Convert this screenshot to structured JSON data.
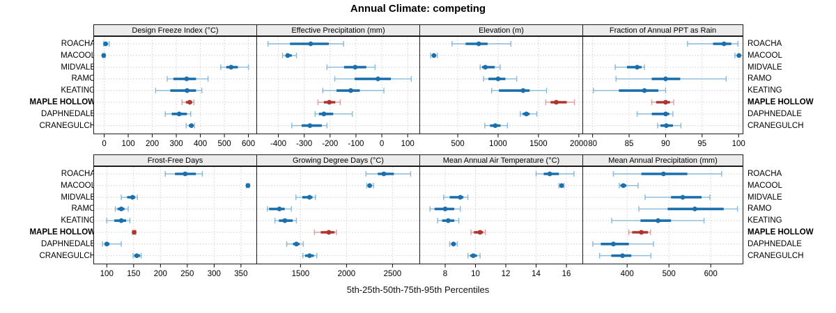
{
  "title": "Annual Climate: competing",
  "caption": "5th-25th-50th-75th-95th Percentiles",
  "stations": [
    "ROACHA",
    "MACOOL",
    "MIDVALE",
    "RAMO",
    "KEATING",
    "MAPLE HOLLOW",
    "DAPHNEDALE",
    "CRANEGULCH"
  ],
  "highlight_station": "MAPLE HOLLOW",
  "colors": {
    "series_blue": "#1b6fad",
    "series_blue_light": "#85b8d9",
    "highlight_red": "#b0332f",
    "highlight_red_light": "#de9d9b",
    "strip_bg": "#ececec",
    "grid": "#cfcfcf",
    "border": "#1a1a1a"
  },
  "chart_data": {
    "type": "dotplot-percentiles",
    "percentile_labels": [
      "5th",
      "25th",
      "50th",
      "75th",
      "95th"
    ],
    "layout": "2 rows x 4 columns, shared station y-axis, free x scales",
    "grid": true,
    "panels": [
      {
        "title": "Design Freeze Index (°C)",
        "xlim": [
          -45,
          636
        ],
        "ticks": [
          0,
          100,
          200,
          300,
          400,
          500,
          600
        ],
        "values": [
          [
            -2,
            2,
            6,
            15,
            21
          ],
          [
            -6,
            -4,
            -2,
            1,
            4
          ],
          [
            485,
            508,
            528,
            556,
            600
          ],
          [
            262,
            288,
            343,
            382,
            432
          ],
          [
            214,
            275,
            345,
            382,
            406
          ],
          [
            324,
            340,
            356,
            366,
            373
          ],
          [
            254,
            281,
            312,
            344,
            360
          ],
          [
            341,
            352,
            363,
            370,
            376
          ]
        ]
      },
      {
        "title": "Effective Precipitation (mm)",
        "xlim": [
          -485,
          148
        ],
        "ticks": [
          -400,
          -300,
          -200,
          -100,
          0,
          100
        ],
        "values": [
          [
            -440,
            -355,
            -275,
            -205,
            -148
          ],
          [
            -384,
            -372,
            -364,
            -348,
            -330
          ],
          [
            -212,
            -146,
            -103,
            -60,
            -26
          ],
          [
            -182,
            -105,
            -15,
            35,
            114
          ],
          [
            -228,
            -175,
            -120,
            -85,
            8
          ],
          [
            -247,
            -224,
            -203,
            -180,
            -161
          ],
          [
            -258,
            -243,
            -224,
            -188,
            -114
          ],
          [
            -348,
            -310,
            -278,
            -232,
            -212
          ]
        ]
      },
      {
        "title": "Elevation (m)",
        "xlim": [
          25,
          2053
        ],
        "ticks": [
          500,
          1000,
          1500,
          2000
        ],
        "values": [
          [
            430,
            597,
            760,
            870,
            1158
          ],
          [
            165,
            188,
            205,
            228,
            248
          ],
          [
            778,
            802,
            842,
            958,
            1025
          ],
          [
            820,
            880,
            1000,
            1090,
            1230
          ],
          [
            920,
            1010,
            1310,
            1390,
            1600
          ],
          [
            1590,
            1650,
            1720,
            1850,
            1945
          ],
          [
            1275,
            1305,
            1350,
            1390,
            1480
          ],
          [
            835,
            900,
            965,
            1030,
            1115
          ]
        ]
      },
      {
        "title": "Fraction of Annual PPT as Rain",
        "xlim": [
          78.6,
          100.65
        ],
        "ticks": [
          80,
          85,
          90,
          95,
          100
        ],
        "values": [
          [
            93.0,
            96.5,
            98.0,
            99.0,
            99.9
          ],
          [
            99.5,
            99.8,
            100.05,
            100.3,
            100.6
          ],
          [
            83.1,
            84.7,
            86.1,
            86.7,
            87.1
          ],
          [
            83.2,
            88.1,
            90.0,
            92.0,
            98.3
          ],
          [
            80.1,
            83.6,
            87.1,
            89.0,
            90.0
          ],
          [
            88.1,
            88.7,
            90.0,
            90.6,
            91.1
          ],
          [
            86.1,
            88.1,
            90.0,
            90.5,
            91.0
          ],
          [
            88.9,
            89.3,
            90.1,
            91.0,
            92.1
          ]
        ]
      },
      {
        "title": "Frost-Free Days",
        "xlim": [
          75,
          380
        ],
        "ticks": [
          100,
          150,
          200,
          250,
          300,
          350
        ],
        "values": [
          [
            209,
            227,
            246,
            266,
            278
          ],
          [
            360,
            361.5,
            363,
            364,
            365.5
          ],
          [
            127,
            138,
            148,
            153,
            157
          ],
          [
            116,
            120,
            127,
            133,
            140
          ],
          [
            100,
            114,
            127,
            136,
            143
          ],
          [
            148,
            149.5,
            151,
            152.5,
            154
          ],
          [
            92,
            96,
            100,
            105,
            127
          ],
          [
            149,
            151,
            156,
            162,
            164
          ]
        ]
      },
      {
        "title": "Growing Degree Days (°C)",
        "xlim": [
          1020,
          2800
        ],
        "ticks": [
          1500,
          2000,
          2500
        ],
        "values": [
          [
            2212,
            2340,
            2406,
            2515,
            2697
          ],
          [
            2220,
            2238,
            2252,
            2272,
            2293
          ],
          [
            1450,
            1520,
            1598,
            1630,
            1662
          ],
          [
            1140,
            1158,
            1270,
            1328,
            1400
          ],
          [
            1222,
            1265,
            1330,
            1415,
            1455
          ],
          [
            1652,
            1720,
            1808,
            1870,
            1890
          ],
          [
            1350,
            1418,
            1455,
            1490,
            1530
          ],
          [
            1525,
            1550,
            1598,
            1645,
            1677
          ]
        ]
      },
      {
        "title": "Mean Annual Air Temperature (°C)",
        "xlim": [
          6.3,
          17.1
        ],
        "ticks": [
          8,
          10,
          12,
          14,
          16
        ],
        "values": [
          [
            14.0,
            14.5,
            14.9,
            15.5,
            16.5
          ],
          [
            15.5,
            15.6,
            15.68,
            15.76,
            15.84
          ],
          [
            7.9,
            8.3,
            9.0,
            9.2,
            9.5
          ],
          [
            7.0,
            7.3,
            8.0,
            8.6,
            9.0
          ],
          [
            7.5,
            7.8,
            8.2,
            8.6,
            8.9
          ],
          [
            9.7,
            9.9,
            10.3,
            10.5,
            10.65
          ],
          [
            8.3,
            8.4,
            8.55,
            8.7,
            8.8
          ],
          [
            9.5,
            9.65,
            9.85,
            10.1,
            10.3
          ]
        ]
      },
      {
        "title": "Mean Annual Precipitation (mm)",
        "xlim": [
          293,
          678
        ],
        "ticks": [
          400,
          500,
          600
        ],
        "values": [
          [
            367,
            434,
            487,
            544,
            626
          ],
          [
            381,
            384,
            391,
            398,
            426
          ],
          [
            443,
            505,
            533,
            578,
            598
          ],
          [
            428,
            497,
            562,
            631,
            664
          ],
          [
            363,
            432,
            474,
            505,
            584
          ],
          [
            404,
            412,
            434,
            450,
            456
          ],
          [
            318,
            337,
            367,
            404,
            463
          ],
          [
            334,
            362,
            389,
            410,
            457
          ]
        ]
      }
    ]
  }
}
